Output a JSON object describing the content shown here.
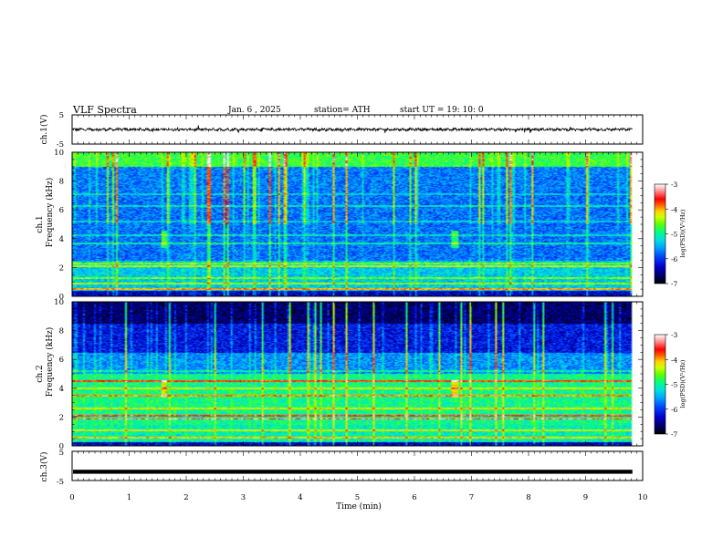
{
  "header": {
    "title": "VLF  Spectra",
    "date": "Jan.  6   , 2025",
    "station": "station= ATH",
    "start": "start  UT  =    19: 10: 0"
  },
  "chart_data": [
    {
      "type": "line",
      "name": "ch1-waveform",
      "ylabel": "ch.1(V)",
      "ylim": [
        -5,
        5
      ],
      "y_ticks": [
        "5",
        "-5"
      ],
      "xlim": [
        0,
        10
      ],
      "x_extent_min": 9.82,
      "mean_v": 0.0,
      "amplitude_v": 0.5
    },
    {
      "type": "heatmap",
      "name": "ch1-spectrogram",
      "ylabel": "ch.1\nFrequency  (kHz)",
      "ylim": [
        0,
        10
      ],
      "y_ticks": [
        "0",
        "2",
        "4",
        "6",
        "8",
        "10"
      ],
      "xlim": [
        0,
        10
      ],
      "x_extent_min": 9.82,
      "colorbar": {
        "label": "log(PSD)(V²/Hz)",
        "range": [
          -7,
          -3
        ],
        "ticks": [
          "-3",
          "-4",
          "-5",
          "-6",
          "-7"
        ]
      }
    },
    {
      "type": "heatmap",
      "name": "ch2-spectrogram",
      "ylabel": "ch.2\nFrequency  (kHz)",
      "ylim": [
        0,
        10
      ],
      "y_ticks": [
        "0",
        "2",
        "4",
        "6",
        "8",
        "10"
      ],
      "xlim": [
        0,
        10
      ],
      "x_extent_min": 9.82,
      "colorbar": {
        "label": "log(PSD)(V²/Hz)",
        "range": [
          -7,
          -3
        ],
        "ticks": [
          "-3",
          "-4",
          "-5",
          "-6",
          "-7"
        ]
      }
    },
    {
      "type": "line",
      "name": "ch3-waveform",
      "ylabel": "ch.3(V)",
      "ylim": [
        -5,
        5
      ],
      "y_ticks": [
        "5",
        "-5"
      ],
      "xlim": [
        0,
        10
      ],
      "x_extent_min": 9.82,
      "mean_v": -2.0,
      "amplitude_v": 0.0,
      "xlabel": "Time  (min)",
      "x_ticks": [
        "0",
        "1",
        "2",
        "3",
        "4",
        "5",
        "6",
        "7",
        "8",
        "9",
        "10"
      ]
    }
  ],
  "colors": {
    "scale": [
      "#000000",
      "#000066",
      "#0000cc",
      "#0044ff",
      "#00a0ff",
      "#00e0e0",
      "#00ff80",
      "#60ff00",
      "#d0ff00",
      "#ffd000",
      "#ff6000",
      "#ff0000",
      "#ff9090",
      "#ffffff"
    ]
  }
}
